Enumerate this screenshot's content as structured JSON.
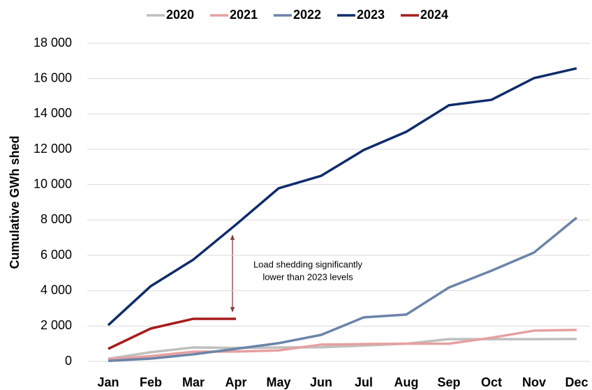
{
  "chart_data": {
    "type": "line",
    "ylabel": "Cumulative GWh shed",
    "categories": [
      "Jan",
      "Feb",
      "Mar",
      "Apr",
      "May",
      "Jun",
      "Jul",
      "Aug",
      "Sep",
      "Oct",
      "Nov",
      "Dec"
    ],
    "series": [
      {
        "name": "2020",
        "color": "#bfbfbf",
        "values": [
          150,
          520,
          790,
          760,
          790,
          800,
          900,
          1000,
          1260,
          1260,
          1260,
          1270
        ]
      },
      {
        "name": "2021",
        "color": "#e6a0a0",
        "values": [
          120,
          300,
          550,
          560,
          620,
          950,
          980,
          1000,
          1000,
          1340,
          1740,
          1780
        ]
      },
      {
        "name": "2022",
        "color": "#6b84a8",
        "values": [
          30,
          160,
          400,
          710,
          1030,
          1500,
          2490,
          2650,
          4180,
          5130,
          6160,
          8130
        ]
      },
      {
        "name": "2023",
        "color": "#0f2c6b",
        "values": [
          2050,
          4260,
          5760,
          7740,
          9790,
          10500,
          11960,
          12990,
          14490,
          14800,
          16030,
          16580
        ]
      },
      {
        "name": "2024",
        "color": "#a61c1c",
        "values": [
          710,
          1860,
          2410,
          2410,
          null,
          null,
          null,
          null,
          null,
          null,
          null,
          null
        ]
      }
    ],
    "ylim": [
      0,
      18000
    ],
    "yticks": [
      0,
      {
        "value": 2000,
        "label": "2 000"
      },
      {
        "value": 4000,
        "label": "4 000"
      },
      {
        "value": 6000,
        "label": "6 000"
      },
      {
        "value": 8000,
        "label": "8 000"
      },
      {
        "value": 10000,
        "label": "10 000"
      },
      {
        "value": 12000,
        "label": "12 000"
      },
      {
        "value": 14000,
        "label": "14 000"
      },
      {
        "value": 16000,
        "label": "16 000"
      },
      {
        "value": 18000,
        "label": "18 000"
      }
    ],
    "grid": true,
    "legend": "top",
    "annotation": [
      "Load shedding significantly",
      "lower than 2023 levels"
    ]
  }
}
